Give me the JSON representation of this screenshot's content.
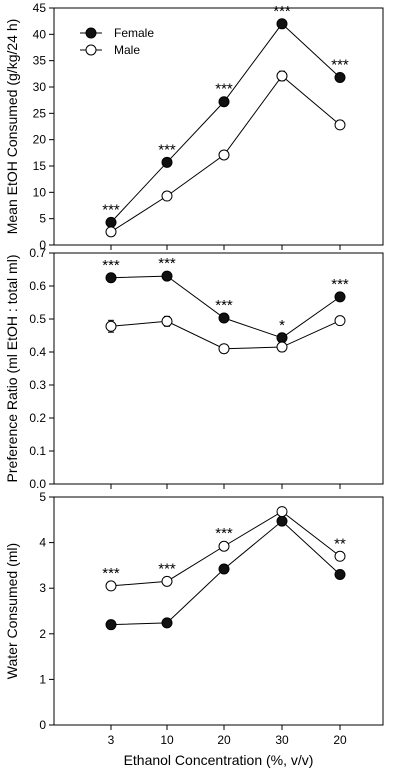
{
  "chart_data": [
    {
      "type": "line",
      "categories": [
        "3",
        "10",
        "20",
        "30",
        "20"
      ],
      "ylabel": "Mean EtOH Consumed (g/kg/24 h)",
      "ylim": [
        0,
        45
      ],
      "yticks": [
        "0",
        "5",
        "10",
        "15",
        "20",
        "25",
        "30",
        "35",
        "40",
        "45"
      ],
      "grid": false,
      "legend": "top-left",
      "series": [
        {
          "name": "Female",
          "marker": "filled-circle",
          "values": [
            4.3,
            15.7,
            27.2,
            42.0,
            31.8
          ],
          "errors": [
            0.5,
            0.6,
            0.6,
            0.8,
            0.6
          ]
        },
        {
          "name": "Male",
          "marker": "open-circle",
          "values": [
            2.5,
            9.3,
            17.1,
            32.1,
            22.8
          ],
          "errors": [
            0.3,
            0.4,
            0.4,
            0.9,
            0.5
          ]
        }
      ],
      "annotations": [
        "***",
        "***",
        "***",
        "***",
        "***"
      ]
    },
    {
      "type": "line",
      "categories": [
        "3",
        "10",
        "20",
        "30",
        "20"
      ],
      "ylabel": "Preference Ratio (ml EtOH : total ml)",
      "ylim": [
        0,
        0.7
      ],
      "yticks": [
        "0.0",
        "0.1",
        "0.2",
        "0.3",
        "0.4",
        "0.5",
        "0.6",
        "0.7"
      ],
      "grid": false,
      "series": [
        {
          "name": "Female",
          "marker": "filled-circle",
          "values": [
            0.625,
            0.63,
            0.503,
            0.443,
            0.567
          ],
          "errors": [
            0.012,
            0.012,
            0.01,
            0.01,
            0.012
          ]
        },
        {
          "name": "Male",
          "marker": "open-circle",
          "values": [
            0.478,
            0.493,
            0.41,
            0.415,
            0.495
          ],
          "errors": [
            0.018,
            0.015,
            0.008,
            0.008,
            0.01
          ]
        }
      ],
      "annotations": [
        "***",
        "***",
        "***",
        "*",
        "***"
      ]
    },
    {
      "type": "line",
      "categories": [
        "3",
        "10",
        "20",
        "30",
        "20"
      ],
      "xlabel": "Ethanol Concentration (%, v/v)",
      "ylabel": "Water Consumed (ml)",
      "ylim": [
        0,
        5
      ],
      "yticks": [
        "0",
        "1",
        "2",
        "3",
        "4",
        "5"
      ],
      "grid": false,
      "series": [
        {
          "name": "Female",
          "marker": "filled-circle",
          "values": [
            2.2,
            2.24,
            3.42,
            4.47,
            3.3
          ],
          "errors": [
            0.07,
            0.06,
            0.06,
            0.06,
            0.08
          ]
        },
        {
          "name": "Male",
          "marker": "open-circle",
          "values": [
            3.05,
            3.15,
            3.92,
            4.68,
            3.7
          ],
          "errors": [
            0.07,
            0.07,
            0.06,
            0.06,
            0.06
          ]
        }
      ],
      "annotations": [
        "***",
        "***",
        "***",
        "",
        "**"
      ]
    }
  ],
  "colors": {
    "female_marker": "#111111",
    "male_marker": "#ffffff",
    "line": "#000000"
  }
}
